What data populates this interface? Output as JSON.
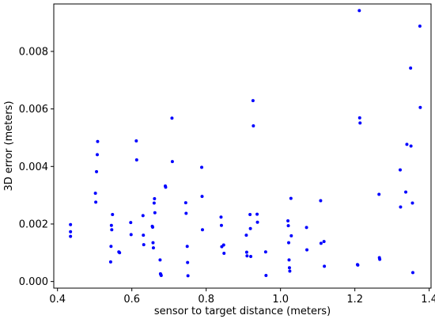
{
  "chart_data": {
    "type": "scatter",
    "xlabel": "sensor to target distance (meters)",
    "ylabel": "3D error (meters)",
    "xlim": [
      0.39,
      1.405
    ],
    "ylim": [
      -0.00023,
      0.00965
    ],
    "x_ticks": [
      0.4,
      0.6,
      0.8,
      1.0,
      1.2,
      1.4
    ],
    "x_tick_labels": [
      "0.4",
      "0.6",
      "0.8",
      "1.0",
      "1.2",
      "1.4"
    ],
    "y_ticks": [
      0.0,
      0.002,
      0.004,
      0.006,
      0.008
    ],
    "y_tick_labels": [
      "0.000",
      "0.002",
      "0.004",
      "0.006",
      "0.008"
    ],
    "grid": false,
    "marker_color": "#0000ff",
    "series": [
      {
        "points": [
          [
            0.435,
            0.00198
          ],
          [
            0.435,
            0.00173
          ],
          [
            0.435,
            0.00157
          ],
          [
            0.502,
            0.00307
          ],
          [
            0.503,
            0.00276
          ],
          [
            0.505,
            0.00382
          ],
          [
            0.507,
            0.00441
          ],
          [
            0.508,
            0.00487
          ],
          [
            0.543,
            0.00068
          ],
          [
            0.544,
            0.00122
          ],
          [
            0.545,
            0.00195
          ],
          [
            0.546,
            0.0018
          ],
          [
            0.548,
            0.00233
          ],
          [
            0.565,
            0.00103
          ],
          [
            0.567,
            0.001
          ],
          [
            0.597,
            0.00205
          ],
          [
            0.598,
            0.00163
          ],
          [
            0.612,
            0.00489
          ],
          [
            0.613,
            0.00423
          ],
          [
            0.63,
            0.00229
          ],
          [
            0.631,
            0.00161
          ],
          [
            0.632,
            0.00128
          ],
          [
            0.655,
            0.00192
          ],
          [
            0.656,
            0.00189
          ],
          [
            0.657,
            0.00135
          ],
          [
            0.658,
            0.00117
          ],
          [
            0.66,
            0.00273
          ],
          [
            0.661,
            0.00288
          ],
          [
            0.662,
            0.00239
          ],
          [
            0.676,
            0.00075
          ],
          [
            0.677,
            0.00027
          ],
          [
            0.678,
            0.00024
          ],
          [
            0.679,
            0.00021
          ],
          [
            0.69,
            0.00332
          ],
          [
            0.691,
            0.00328
          ],
          [
            0.708,
            0.00568
          ],
          [
            0.709,
            0.00417
          ],
          [
            0.745,
            0.00274
          ],
          [
            0.746,
            0.00237
          ],
          [
            0.749,
            0.00122
          ],
          [
            0.75,
            0.00066
          ],
          [
            0.751,
            0.0002
          ],
          [
            0.788,
            0.00397
          ],
          [
            0.789,
            0.00296
          ],
          [
            0.79,
            0.0018
          ],
          [
            0.84,
            0.00224
          ],
          [
            0.841,
            0.00195
          ],
          [
            0.842,
            0.00121
          ],
          [
            0.847,
            0.00127
          ],
          [
            0.848,
            0.00098
          ],
          [
            0.908,
            0.00161
          ],
          [
            0.909,
            0.00102
          ],
          [
            0.91,
            0.00089
          ],
          [
            0.918,
            0.00233
          ],
          [
            0.919,
            0.00184
          ],
          [
            0.92,
            0.00087
          ],
          [
            0.926,
            0.00629
          ],
          [
            0.927,
            0.00541
          ],
          [
            0.937,
            0.00234
          ],
          [
            0.938,
            0.00206
          ],
          [
            0.96,
            0.00103
          ],
          [
            0.961,
            0.00021
          ],
          [
            1.02,
            0.00211
          ],
          [
            1.021,
            0.00194
          ],
          [
            1.022,
            0.00135
          ],
          [
            1.023,
            0.00075
          ],
          [
            1.024,
            0.00048
          ],
          [
            1.025,
            0.00036
          ],
          [
            1.028,
            0.00289
          ],
          [
            1.029,
            0.00159
          ],
          [
            1.07,
            0.00188
          ],
          [
            1.071,
            0.0011
          ],
          [
            1.108,
            0.00281
          ],
          [
            1.109,
            0.00133
          ],
          [
            1.117,
            0.00139
          ],
          [
            1.118,
            0.00053
          ],
          [
            1.207,
            0.00059
          ],
          [
            1.208,
            0.00057
          ],
          [
            1.212,
            0.00942
          ],
          [
            1.213,
            0.00569
          ],
          [
            1.214,
            0.00551
          ],
          [
            1.265,
            0.00303
          ],
          [
            1.266,
            0.00083
          ],
          [
            1.267,
            0.00077
          ],
          [
            1.322,
            0.00388
          ],
          [
            1.323,
            0.00259
          ],
          [
            1.337,
            0.00311
          ],
          [
            1.34,
            0.00477
          ],
          [
            1.35,
            0.00742
          ],
          [
            1.351,
            0.00471
          ],
          [
            1.355,
            0.00273
          ],
          [
            1.356,
            0.00031
          ],
          [
            1.375,
            0.00888
          ],
          [
            1.376,
            0.00605
          ]
        ]
      }
    ]
  }
}
